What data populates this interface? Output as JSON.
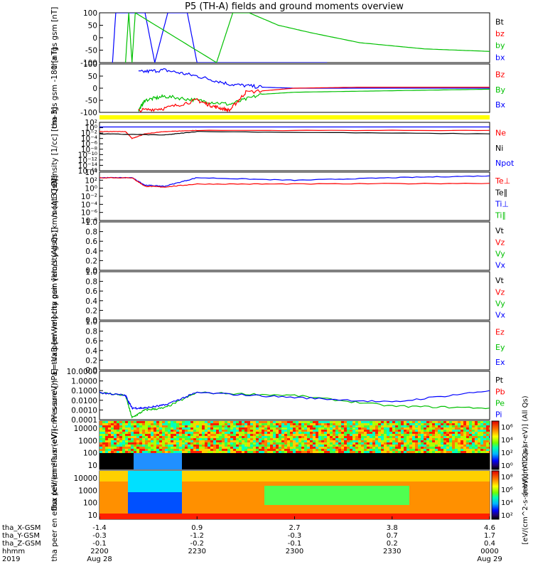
{
  "title": "P5 (TH-A) fields and ground moments overview",
  "time_axis": {
    "rows": [
      {
        "label": "tha_X-GSM",
        "values": [
          "-1.4",
          "0.9",
          "2.7",
          "3.8",
          "4.6"
        ]
      },
      {
        "label": "tha_Y-GSM",
        "values": [
          "-0.3",
          "-1.2",
          "-0.3",
          "0.7",
          "1.7"
        ]
      },
      {
        "label": "tha_Z-GSM",
        "values": [
          "-0.1",
          "-0.2",
          "-0.1",
          "0.2",
          "0.4"
        ]
      },
      {
        "label": "hhmm",
        "values": [
          "2200",
          "2230",
          "2300",
          "2330",
          "0000"
        ]
      },
      {
        "label": "2019",
        "values": [
          "Aug 28",
          "",
          "",
          "",
          "Aug 29"
        ]
      }
    ]
  },
  "chart_data": [
    {
      "type": "line",
      "ylabel": "tha fgs gsm [nT]",
      "ylim": [
        -100,
        100
      ],
      "ticks": [
        "100",
        "50",
        "0",
        "-50",
        "-100"
      ],
      "legend": [
        {
          "name": "Bt",
          "color": "#000000"
        },
        {
          "name": "bz",
          "color": "#ff0000"
        },
        {
          "name": "by",
          "color": "#00c000"
        },
        {
          "name": "bx",
          "color": "#0000ff"
        }
      ],
      "x_unit": "minutes after 2200",
      "series": [
        {
          "name": "bx",
          "x": [
            4,
            5,
            14,
            17,
            21,
            27,
            30,
            60,
            70
          ],
          "y": [
            -100,
            100,
            100,
            -100,
            100,
            100,
            -100,
            -100,
            -100
          ]
        },
        {
          "name": "by",
          "x": [
            8,
            9,
            10,
            11,
            36,
            41,
            46,
            55,
            65,
            80,
            100,
            120
          ],
          "y": [
            -100,
            100,
            -100,
            100,
            -100,
            100,
            100,
            50,
            20,
            -20,
            -45,
            -55
          ]
        }
      ]
    },
    {
      "type": "line",
      "ylabel": "tha fgs gsm -180 [nT]",
      "ylim": [
        -120,
        120
      ],
      "ticks": [
        "100",
        "50",
        "0",
        "-50",
        "-100"
      ],
      "legend": [
        {
          "name": "Bz",
          "color": "#ff0000"
        },
        {
          "name": "By",
          "color": "#00c000"
        },
        {
          "name": "Bx",
          "color": "#0000ff"
        }
      ],
      "series": [
        {
          "name": "Bx",
          "x": [
            12,
            20,
            30,
            40,
            50,
            60,
            80,
            120
          ],
          "y": [
            80,
            90,
            60,
            20,
            5,
            0,
            0,
            0
          ]
        },
        {
          "name": "By",
          "x": [
            12,
            14,
            20,
            30,
            40,
            50,
            60,
            80,
            100,
            120
          ],
          "y": [
            -110,
            -60,
            -40,
            -60,
            -80,
            -30,
            -20,
            -15,
            -10,
            -5
          ]
        },
        {
          "name": "Bz",
          "x": [
            12,
            20,
            30,
            35,
            40,
            45,
            60,
            80,
            120
          ],
          "y": [
            -110,
            -100,
            -60,
            -90,
            -110,
            -20,
            0,
            5,
            5
          ]
        }
      ]
    },
    {
      "type": "line",
      "ylabel": "Density [1/cc] [cm-3]",
      "ylim_log": [
        -18,
        3
      ],
      "ticks": [
        "10²",
        "10⁰",
        "10⁻²",
        "10⁻⁴",
        "10⁻⁶",
        "10⁻⁸",
        "10⁻¹⁰",
        "10⁻¹²",
        "10⁻¹⁴",
        "10⁻¹⁶"
      ],
      "legend": [
        {
          "name": "Ne",
          "color": "#ff0000"
        },
        {
          "name": "Ni",
          "color": "#000000"
        },
        {
          "name": "Npot",
          "color": "#0000ff"
        }
      ],
      "series": [
        {
          "name": "Npot",
          "log_values": [
            1,
            1,
            1,
            1
          ]
        },
        {
          "name": "Ne",
          "x": [
            0,
            8,
            10,
            14,
            20,
            30,
            120
          ],
          "y": [
            -1,
            -1,
            -4,
            -2,
            -1,
            -0.5,
            -0.5
          ]
        },
        {
          "name": "Ni",
          "x": [
            0,
            20,
            30,
            120
          ],
          "y": [
            -2,
            -2.5,
            -1,
            -2
          ]
        }
      ]
    },
    {
      "type": "line",
      "ylabel": "moqt3 [eV]",
      "ylim_log": [
        -8,
        5
      ],
      "ticks": [
        "10⁴",
        "10²",
        "10⁰",
        "10⁻²",
        "10⁻⁴",
        "10⁻⁶",
        "10⁻⁸"
      ],
      "legend": [
        {
          "name": "Te⊥",
          "color": "#ff0000"
        },
        {
          "name": "Te∥",
          "color": "#000000"
        },
        {
          "name": "Ti⊥",
          "color": "#0000ff"
        },
        {
          "name": "Ti∥",
          "color": "#00c000"
        }
      ],
      "series": [
        {
          "name": "Ti⊥",
          "x": [
            0,
            10,
            14,
            20,
            30,
            60,
            90,
            120
          ],
          "y": [
            3.5,
            3.5,
            1.5,
            1.2,
            3.5,
            2.8,
            3.5,
            4
          ]
        },
        {
          "name": "Te⊥",
          "x": [
            0,
            10,
            14,
            20,
            30,
            60,
            120
          ],
          "y": [
            3.5,
            3.5,
            1.2,
            1,
            1.8,
            1.8,
            2
          ]
        }
      ]
    },
    {
      "type": "line",
      "ylabel": "tha peir velocity gsm [km/s (All Qs)]",
      "ylim": [
        0,
        1
      ],
      "ticks": [
        "1.0",
        "0.8",
        "0.6",
        "0.4",
        "0.2",
        "0.0"
      ],
      "legend": [
        {
          "name": "Vt",
          "color": "#000000"
        },
        {
          "name": "Vz",
          "color": "#ff0000"
        },
        {
          "name": "Vy",
          "color": "#00c000"
        },
        {
          "name": "Vx",
          "color": "#0000ff"
        }
      ],
      "series": []
    },
    {
      "type": "line",
      "ylabel": "tha peer velocity gsm [km/s (All Qs)]",
      "ylim": [
        0,
        1
      ],
      "ticks": [
        "1.0",
        "0.8",
        "0.6",
        "0.4",
        "0.2",
        "0.0"
      ],
      "legend": [
        {
          "name": "Vt",
          "color": "#000000"
        },
        {
          "name": "Vz",
          "color": "#ff0000"
        },
        {
          "name": "Vy",
          "color": "#00c000"
        },
        {
          "name": "Vx",
          "color": "#0000ff"
        }
      ],
      "series": []
    },
    {
      "type": "line",
      "ylabel": "E=-VxB [mV/m]",
      "ylim": [
        0,
        1
      ],
      "ticks": [
        "1.0",
        "0.8",
        "0.6",
        "0.4",
        "0.2",
        "0.0"
      ],
      "legend": [
        {
          "name": "Ez",
          "color": "#ff0000"
        },
        {
          "name": "Ey",
          "color": "#00c000"
        },
        {
          "name": "Ex",
          "color": "#0000ff"
        }
      ],
      "series": []
    },
    {
      "type": "line",
      "ylabel": "Pressure [nPa]",
      "ylim_log": [
        -4,
        1
      ],
      "ticks": [
        "10.0000",
        "1.0000",
        "0.1000",
        "0.0100",
        "0.0010",
        "0.0001"
      ],
      "legend": [
        {
          "name": "Pt",
          "color": "#000000"
        },
        {
          "name": "Pb",
          "color": "#ff0000"
        },
        {
          "name": "Pe",
          "color": "#00c000"
        },
        {
          "name": "Pi",
          "color": "#0000ff"
        }
      ],
      "series": [
        {
          "name": "Pe",
          "x": [
            0,
            8,
            10,
            14,
            20,
            30,
            60,
            90,
            120
          ],
          "y": [
            -1.2,
            -1.5,
            -3.8,
            -3,
            -2.8,
            -1.2,
            -1.5,
            -2.6,
            -2.8
          ]
        },
        {
          "name": "Pi",
          "x": [
            0,
            8,
            10,
            14,
            20,
            30,
            60,
            90,
            120
          ],
          "y": [
            -1.2,
            -1.5,
            -2.8,
            -2.8,
            -2.5,
            -1.2,
            -1.7,
            -2.2,
            -1
          ]
        }
      ]
    },
    {
      "type": "heatmap",
      "ylabel": "tha peir en eflux (eV/(cm²-s-sr-eV))",
      "ticks": [
        "10000",
        "1000",
        "100",
        "10"
      ],
      "colorbar_label": "[eV/(cm^2-s-sr-eV)] (All Qs)",
      "colorbar_ticks": [
        "10⁶",
        "10⁴",
        "10²",
        "10⁰"
      ]
    },
    {
      "type": "heatmap",
      "ylabel": "tha peer en eflux (eV/(cm²-s-sr-eV))",
      "ticks": [
        "10000",
        "1000",
        "100",
        "10"
      ],
      "colorbar_label": "[eV/(cm^2-s-sr-eV)] (All Qs)",
      "colorbar_ticks": [
        "10⁸",
        "10⁶",
        "10⁴",
        "10²"
      ]
    }
  ]
}
